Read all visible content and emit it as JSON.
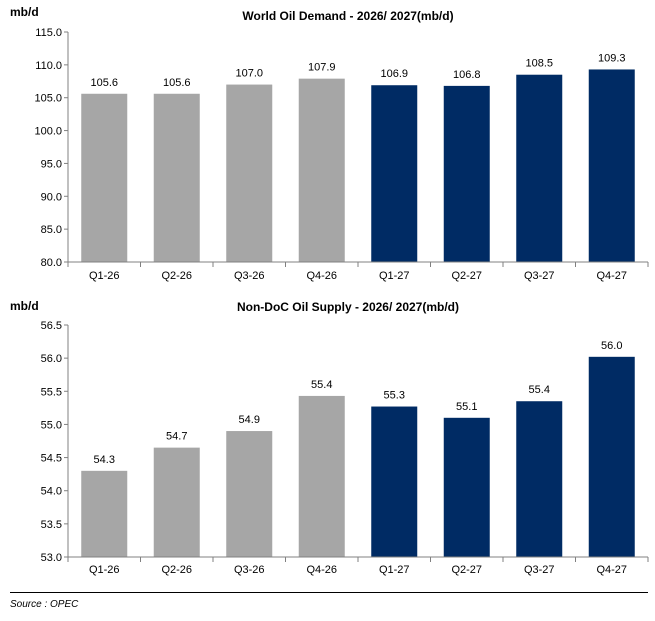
{
  "chart_data": [
    {
      "type": "bar",
      "title": "World Oil Demand - 2026/ 2027(mb/d)",
      "ylabel": "mb/d",
      "xlabel": "",
      "categories": [
        "Q1-26",
        "Q2-26",
        "Q3-26",
        "Q4-26",
        "Q1-27",
        "Q2-27",
        "Q3-27",
        "Q4-27"
      ],
      "values": [
        105.6,
        105.6,
        107.0,
        107.9,
        106.9,
        106.8,
        108.5,
        109.3
      ],
      "value_labels": [
        "105.6",
        "105.6",
        "107.0",
        "107.9",
        "106.9",
        "106.8",
        "108.5",
        "109.3"
      ],
      "ylim": [
        80.0,
        115.0
      ],
      "yticks": [
        "80.0",
        "85.0",
        "90.0",
        "95.0",
        "100.0",
        "105.0",
        "110.0",
        "115.0"
      ],
      "grid": false,
      "colors": [
        "#a6a6a6",
        "#a6a6a6",
        "#a6a6a6",
        "#a6a6a6",
        "#002b64",
        "#002b64",
        "#002b64",
        "#002b64"
      ]
    },
    {
      "type": "bar",
      "title": "Non-DoC Oil Supply - 2026/ 2027(mb/d)",
      "ylabel": "mb/d",
      "xlabel": "",
      "categories": [
        "Q1-26",
        "Q2-26",
        "Q3-26",
        "Q4-26",
        "Q1-27",
        "Q2-27",
        "Q3-27",
        "Q4-27"
      ],
      "values": [
        54.3,
        54.65,
        54.9,
        55.43,
        55.27,
        55.1,
        55.35,
        56.02
      ],
      "value_labels": [
        "54.3",
        "54.7",
        "54.9",
        "55.4",
        "55.3",
        "55.1",
        "55.4",
        "56.0"
      ],
      "ylim": [
        53.0,
        56.5
      ],
      "yticks": [
        "53.0",
        "53.5",
        "54.0",
        "54.5",
        "55.0",
        "55.5",
        "56.0",
        "56.5"
      ],
      "grid": false,
      "colors": [
        "#a6a6a6",
        "#a6a6a6",
        "#a6a6a6",
        "#a6a6a6",
        "#002b64",
        "#002b64",
        "#002b64",
        "#002b64"
      ]
    }
  ],
  "source": "Source : OPEC"
}
